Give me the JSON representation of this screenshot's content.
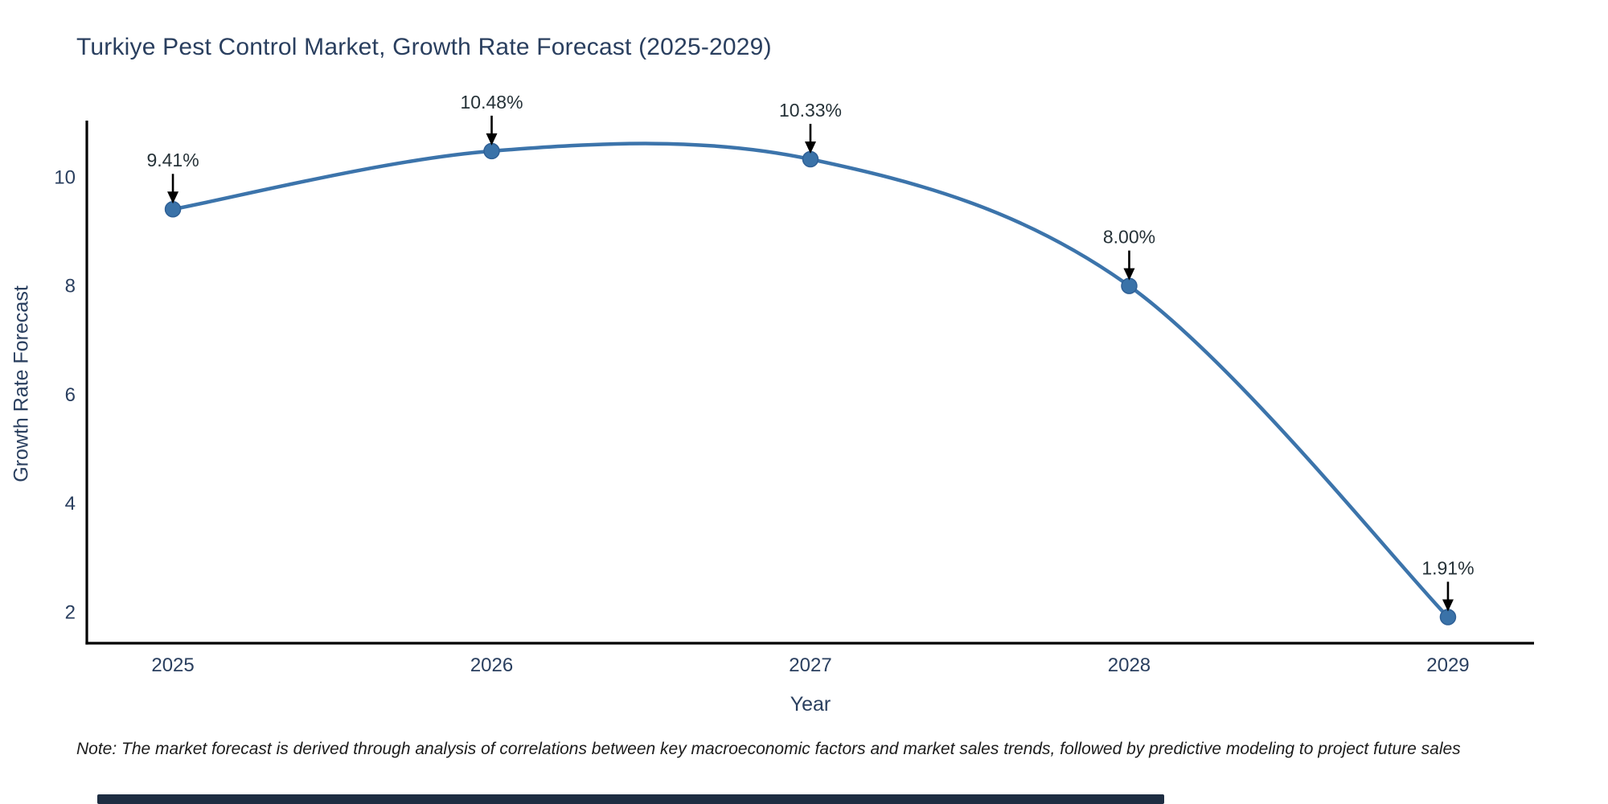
{
  "chart_data": {
    "type": "line",
    "title": "Turkiye Pest Control Market, Growth Rate Forecast (2025-2029)",
    "xlabel": "Year",
    "ylabel": "Growth Rate Forecast",
    "x": [
      2025,
      2026,
      2027,
      2028,
      2029
    ],
    "series": [
      {
        "name": "Growth Rate Forecast",
        "values": [
          9.41,
          10.48,
          10.33,
          8.0,
          1.91
        ]
      }
    ],
    "point_labels": [
      "9.41%",
      "10.48%",
      "10.33%",
      "8.00%",
      "1.91%"
    ],
    "yticks": [
      2,
      4,
      6,
      8,
      10
    ],
    "ylim": [
      1.43,
      11.04
    ],
    "xlim": [
      2024.73,
      2029.27
    ],
    "grid": false,
    "legend": "none",
    "line_shape": "spline",
    "colors": {
      "line": "#3c74ab",
      "marker": "#3a72a8",
      "marker_edge": "#2f6096",
      "axis": "#000000",
      "tick_text": "#2a3f5f",
      "annotation_text": "#263238",
      "arrow": "#000000"
    }
  },
  "note": "Note: The market forecast is derived through analysis of correlations between key macroeconomic factors and market sales trends, followed by predictive modeling to project future sales",
  "scrollbar_color": "#1e2d42"
}
